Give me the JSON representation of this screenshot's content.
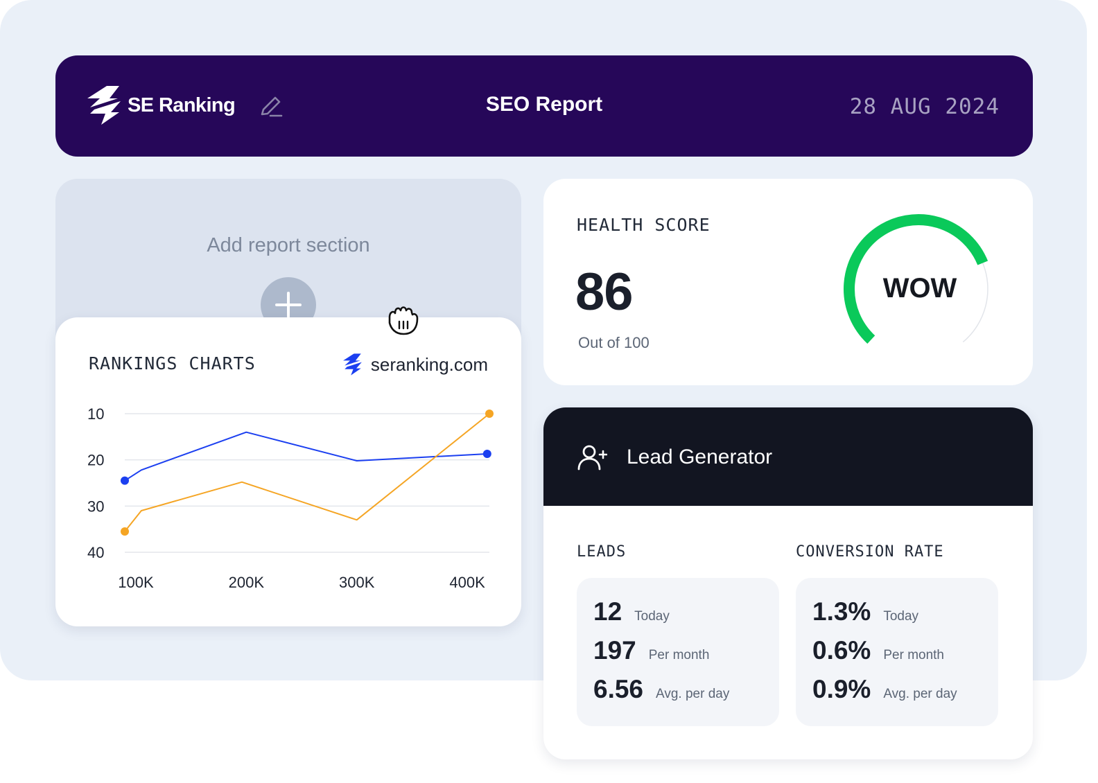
{
  "header": {
    "brand": "SE Ranking",
    "title": "SEO Report",
    "date": "28 AUG 2024"
  },
  "add_section": {
    "label": "Add report section"
  },
  "rankings": {
    "title": "RANKINGS CHARTS",
    "site": "seranking.com"
  },
  "chart_data": {
    "type": "line",
    "title": "RANKINGS CHARTS",
    "x_tick_labels": [
      "100K",
      "200K",
      "300K",
      "400K"
    ],
    "y_tick_labels": [
      "10",
      "20",
      "30",
      "40"
    ],
    "ylim": [
      10,
      40
    ],
    "y_inverted": true,
    "grid": true,
    "series": [
      {
        "color": "#1b3ff0",
        "x": [
          90000,
          105000,
          200000,
          300000,
          418000
        ],
        "y": [
          24.5,
          22.2,
          14.0,
          20.2,
          18.7
        ]
      },
      {
        "color": "#f5a524",
        "x": [
          90000,
          105000,
          196000,
          300000,
          420000
        ],
        "y": [
          35.5,
          31.0,
          24.8,
          33.0,
          10.0
        ]
      }
    ]
  },
  "health": {
    "title": "HEALTH SCORE",
    "value": "86",
    "subtitle": "Out of 100",
    "badge": "WOW",
    "score_fraction": 0.86,
    "color": "#0ac95a"
  },
  "lead": {
    "title": "Lead Generator",
    "leads_label": "LEADS",
    "conversion_label": "CONVERSION RATE",
    "leads": [
      {
        "value": "12",
        "caption": "Today"
      },
      {
        "value": "197",
        "caption": "Per month"
      },
      {
        "value": "6.56",
        "caption": "Avg. per day"
      }
    ],
    "conversion": [
      {
        "value": "1.3%",
        "caption": "Today"
      },
      {
        "value": "0.6%",
        "caption": "Per month"
      },
      {
        "value": "0.9%",
        "caption": "Avg. per day"
      }
    ]
  },
  "icons": {
    "logo": "se-ranking-bolt-icon",
    "edit": "pencil-icon",
    "add": "plus-icon",
    "cursor": "grab-hand-icon",
    "lead": "add-user-icon"
  },
  "colors": {
    "header_bg": "#260759",
    "lead_header_bg": "#121521",
    "brand_blue": "#1b3ff0"
  }
}
